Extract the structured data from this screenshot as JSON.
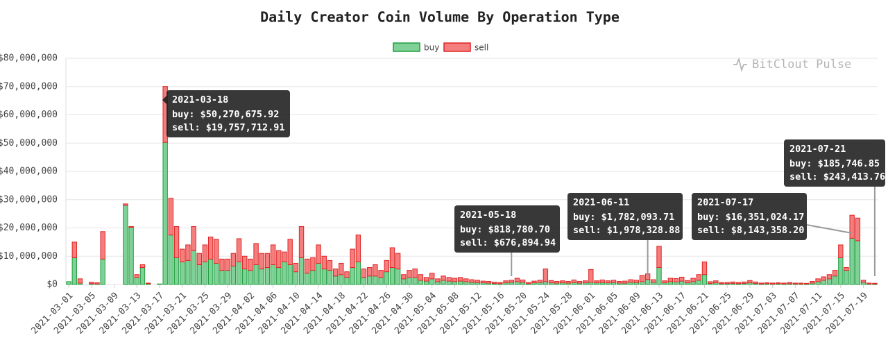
{
  "chart_data": {
    "type": "bar",
    "stacked": true,
    "title": "Daily Creator Coin Volume By Operation Type",
    "watermark": "BitClout Pulse",
    "legend": "top",
    "grid": true,
    "ylim": [
      0,
      80000000
    ],
    "yticks": [
      {
        "value": 0,
        "label": "$0"
      },
      {
        "value": 10000000,
        "label": "$10,000,000"
      },
      {
        "value": 20000000,
        "label": "$20,000,000"
      },
      {
        "value": 30000000,
        "label": "$30,000,000"
      },
      {
        "value": 40000000,
        "label": "$40,000,000"
      },
      {
        "value": 50000000,
        "label": "$50,000,000"
      },
      {
        "value": 60000000,
        "label": "$60,000,000"
      },
      {
        "value": 70000000,
        "label": "$70,000,000"
      },
      {
        "value": 80000000,
        "label": "$80,000,000"
      }
    ],
    "categories": [
      "2021-03-01",
      null,
      null,
      null,
      "2021-03-05",
      null,
      null,
      null,
      "2021-03-09",
      null,
      null,
      null,
      "2021-03-13",
      null,
      null,
      null,
      "2021-03-17",
      null,
      null,
      null,
      "2021-03-21",
      null,
      null,
      null,
      "2021-03-25",
      null,
      null,
      null,
      "2021-03-29",
      null,
      null,
      null,
      "2021-04-02",
      null,
      null,
      null,
      "2021-04-06",
      null,
      null,
      null,
      "2021-04-10",
      null,
      null,
      null,
      "2021-04-14",
      null,
      null,
      null,
      "2021-04-18",
      null,
      null,
      null,
      "2021-04-22",
      null,
      null,
      null,
      "2021-04-26",
      null,
      null,
      null,
      "2021-04-30",
      null,
      null,
      null,
      "2021-05-04",
      null,
      null,
      null,
      "2021-05-08",
      null,
      null,
      null,
      "2021-05-12",
      null,
      null,
      null,
      "2021-05-16",
      null,
      null,
      null,
      "2021-05-20",
      null,
      null,
      null,
      "2021-05-24",
      null,
      null,
      null,
      "2021-05-28",
      null,
      null,
      null,
      "2021-06-01",
      null,
      null,
      null,
      "2021-06-05",
      null,
      null,
      null,
      "2021-06-09",
      null,
      null,
      null,
      "2021-06-13",
      null,
      null,
      null,
      "2021-06-17",
      null,
      null,
      null,
      "2021-06-21",
      null,
      null,
      null,
      "2021-06-25",
      null,
      null,
      null,
      "2021-06-29",
      null,
      null,
      null,
      "2021-07-03",
      null,
      null,
      null,
      "2021-07-07",
      null,
      null,
      null,
      "2021-07-11",
      null,
      null,
      null,
      "2021-07-15",
      null,
      null,
      null,
      "2021-07-19",
      null,
      null
    ],
    "series": [
      {
        "name": "buy",
        "color": "#7fd197",
        "stroke": "#1f9e3e",
        "values": [
          1000000,
          9500000,
          500000,
          0,
          300000,
          200000,
          9000000,
          0,
          0,
          0,
          28000000,
          20200000,
          2500000,
          6000000,
          300000,
          0,
          200000,
          50270675.92,
          17500000,
          9500000,
          8000000,
          8500000,
          12000000,
          7000000,
          8000000,
          9000000,
          7500000,
          5000000,
          5000000,
          6500000,
          8000000,
          5500000,
          5000000,
          7000000,
          5500000,
          6000000,
          7000000,
          6000000,
          8000000,
          7000000,
          4500000,
          9500000,
          4000000,
          5000000,
          7500000,
          5500000,
          5000000,
          3000000,
          3500000,
          2500000,
          6000000,
          8000000,
          2500000,
          3000000,
          3000000,
          2500000,
          4500000,
          6000000,
          5500000,
          2000000,
          2500000,
          2500000,
          1500000,
          1200000,
          2000000,
          1000000,
          1500000,
          1200000,
          1000000,
          1200000,
          1000000,
          800000,
          700000,
          600000,
          500000,
          400000,
          300000,
          600000,
          818780.7,
          1000000,
          800000,
          300000,
          600000,
          700000,
          1000000,
          600000,
          500000,
          600000,
          500000,
          700000,
          500000,
          600000,
          800000,
          600000,
          700000,
          600000,
          700000,
          500000,
          500000,
          800000,
          700000,
          1000000,
          1782093.71,
          800000,
          6000000,
          600000,
          1000000,
          900000,
          1200000,
          600000,
          1000000,
          1500000,
          3500000,
          400000,
          600000,
          300000,
          300000,
          400000,
          300000,
          400000,
          600000,
          400000,
          200000,
          300000,
          200000,
          300000,
          200000,
          300000,
          200000,
          200000,
          200000,
          500000,
          1000000,
          1500000,
          2000000,
          3000000,
          9500000,
          5000000,
          16351024.17,
          15500000,
          800000,
          200000,
          185746.85
        ]
      },
      {
        "name": "sell",
        "color": "#f47e7e",
        "stroke": "#e02424",
        "values": [
          0,
          5500000,
          1500000,
          0,
          500000,
          400000,
          9700000,
          0,
          0,
          0,
          500000,
          300000,
          1000000,
          1000000,
          200000,
          0,
          0,
          19757712.91,
          13000000,
          11000000,
          4500000,
          5500000,
          8500000,
          4000000,
          6000000,
          7800000,
          8500000,
          4000000,
          4000000,
          4500000,
          8200000,
          4500000,
          4000000,
          7500000,
          5500000,
          5000000,
          7000000,
          6000000,
          3500000,
          9000000,
          3000000,
          11000000,
          5000000,
          4500000,
          6500000,
          4500000,
          3500000,
          2500000,
          4000000,
          2000000,
          6500000,
          9500000,
          3000000,
          3000000,
          4000000,
          2500000,
          4000000,
          7000000,
          5500000,
          1500000,
          2500000,
          3000000,
          2000000,
          1300000,
          2000000,
          1000000,
          1500000,
          1300000,
          1200000,
          1300000,
          1000000,
          900000,
          800000,
          600000,
          600000,
          400000,
          400000,
          700000,
          676894.94,
          1200000,
          800000,
          400000,
          600000,
          800000,
          4500000,
          800000,
          600000,
          700000,
          600000,
          900000,
          600000,
          700000,
          4500000,
          700000,
          900000,
          700000,
          800000,
          600000,
          700000,
          900000,
          800000,
          2200000,
          1978328.88,
          900000,
          7500000,
          700000,
          1200000,
          1200000,
          1400000,
          800000,
          1200000,
          2000000,
          4500000,
          600000,
          700000,
          400000,
          400000,
          500000,
          400000,
          500000,
          800000,
          500000,
          300000,
          300000,
          300000,
          300000,
          300000,
          400000,
          300000,
          300000,
          200000,
          600000,
          1000000,
          1200000,
          1500000,
          2000000,
          4500000,
          1000000,
          8143358.2,
          8000000,
          700000,
          300000,
          243413.76
        ]
      }
    ],
    "tooltips": [
      {
        "title": "2021-03-18",
        "lines": [
          "buy: $50,270,675.92",
          "sell: $19,757,712.91"
        ]
      },
      {
        "title": "2021-05-18",
        "lines": [
          "buy: $818,780.70",
          "sell: $676,894.94"
        ]
      },
      {
        "title": "2021-06-11",
        "lines": [
          "buy: $1,782,093.71",
          "sell: $1,978,328.88"
        ]
      },
      {
        "title": "2021-07-17",
        "lines": [
          "buy: $16,351,024.17",
          "sell: $8,143,358.20"
        ]
      },
      {
        "title": "2021-07-21",
        "lines": [
          "buy: $185,746.85",
          "sell: $243,413.76"
        ]
      }
    ]
  }
}
